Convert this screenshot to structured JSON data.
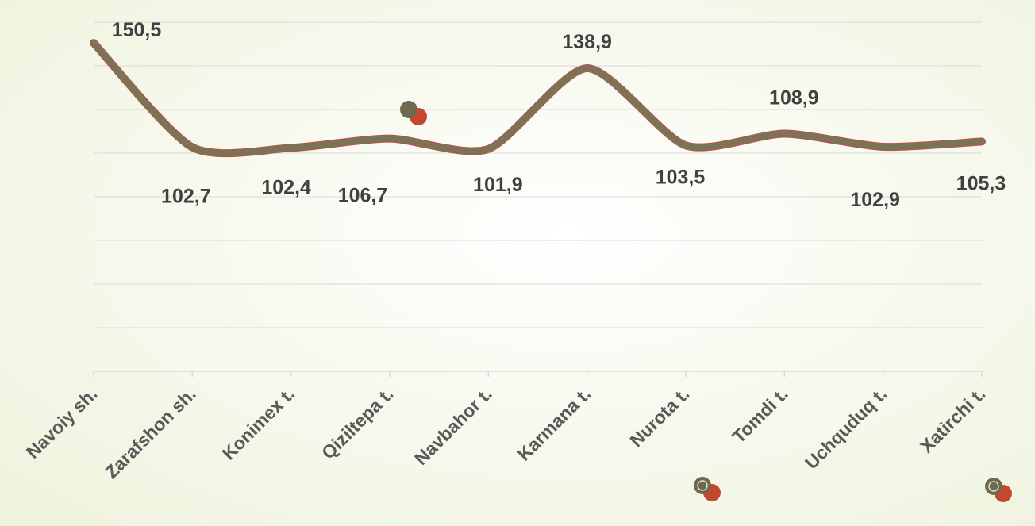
{
  "chart_data": {
    "type": "line",
    "title": "",
    "xlabel": "",
    "ylabel": "",
    "categories": [
      "Navoiy sh.",
      "Zarafshon sh.",
      "Konimex t.",
      "Qiziltepa t.",
      "Navbahor t.",
      "Karmana t.",
      "Nurota t.",
      "Tomdi t.",
      "Uchquduq t.",
      "Xatirchi t."
    ],
    "series": [
      {
        "values": [
          150.5,
          102.7,
          102.4,
          106.7,
          101.9,
          138.9,
          103.5,
          108.9,
          102.9,
          105.3
        ],
        "labels": [
          "150,5",
          "102,7",
          "102,4",
          "106,7",
          "101,9",
          "138,9",
          "103,5",
          "108,9",
          "102,9",
          "105,3"
        ],
        "color": "#7a7355",
        "outline_color": "#c0504d"
      }
    ],
    "ylim": [
      0,
      160
    ],
    "grid": true,
    "legend": "none"
  },
  "decor": {
    "marker_colors": [
      "#6e6a4e",
      "#c4472f"
    ]
  }
}
